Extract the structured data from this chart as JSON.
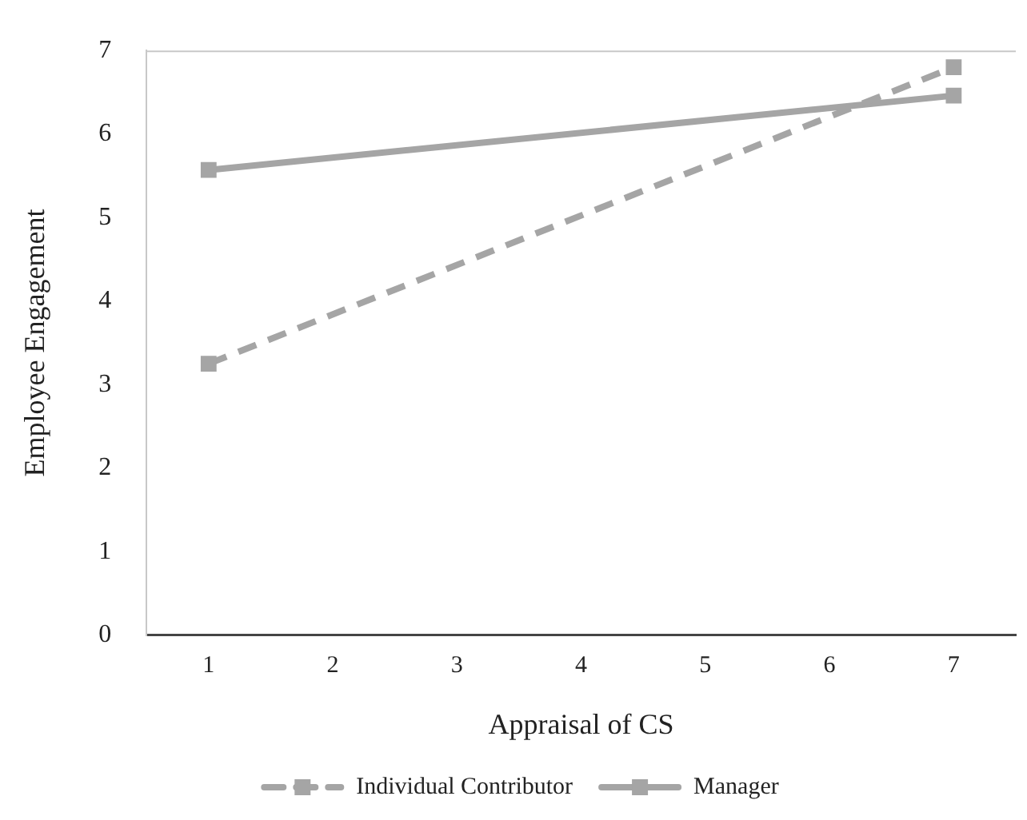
{
  "chart_data": {
    "type": "line",
    "xlabel": "Appraisal of CS",
    "ylabel": "Employee Engagement",
    "categories": [
      "1",
      "2",
      "3",
      "4",
      "5",
      "6",
      "7"
    ],
    "ylim": [
      0,
      7
    ],
    "yticks": [
      0,
      1,
      2,
      3,
      4,
      5,
      6,
      7
    ],
    "grid": false,
    "legend": "bottom",
    "marker": "square",
    "series": [
      {
        "name": "Individual Contributor",
        "color": "#a5a5a5",
        "values": [
          3.25,
          null,
          null,
          null,
          null,
          null,
          6.8
        ],
        "line_style": "dashed"
      },
      {
        "name": "Manager",
        "color": "#a5a5a5",
        "values": [
          5.57,
          null,
          null,
          null,
          null,
          null,
          6.46
        ],
        "line_style": "solid"
      }
    ]
  }
}
